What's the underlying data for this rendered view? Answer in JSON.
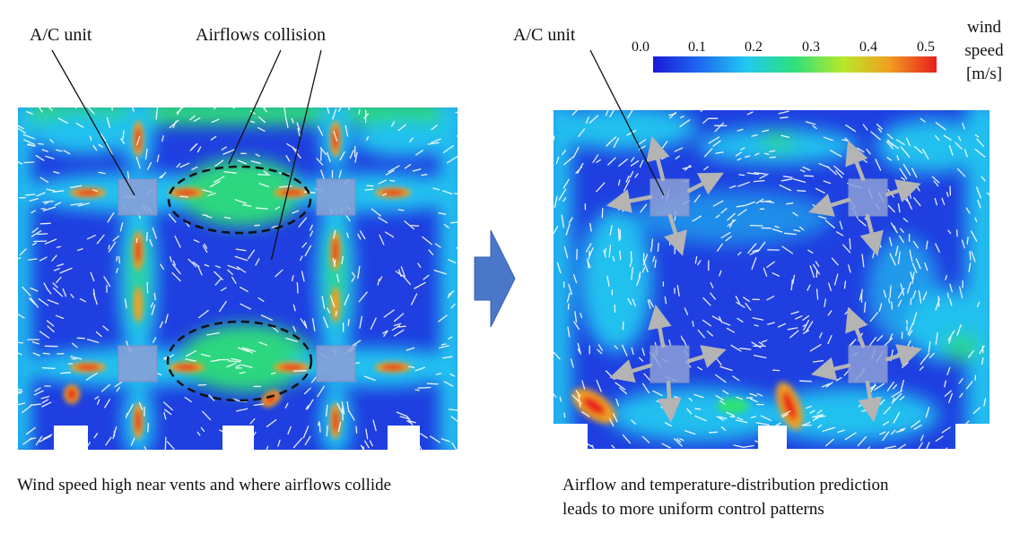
{
  "left_panel": {
    "ac_label": "A/C unit",
    "collision_label": "Airflows collision",
    "caption": "Wind speed high near vents and where airflows collide"
  },
  "right_panel": {
    "ac_label": "A/C unit",
    "caption_line1": "Airflow and temperature-distribution prediction",
    "caption_line2": "leads to more uniform control patterns"
  },
  "colorbar": {
    "ticks": [
      "0.0",
      "0.1",
      "0.2",
      "0.3",
      "0.4",
      "0.5"
    ],
    "title_line1": "wind",
    "title_line2": "speed",
    "title_line3": "[m/s]",
    "colors": [
      "#1a1ad8",
      "#1e6cf0",
      "#22c8f0",
      "#2ee07a",
      "#b8e82a",
      "#f0a020",
      "#e81e1e"
    ]
  },
  "colors": {
    "field_base": "#1f3fe0",
    "ac_unit_fill": "#8c9fd6",
    "arrow_grey": "#b4b4b4",
    "transition_arrow": "#4a77c8"
  }
}
